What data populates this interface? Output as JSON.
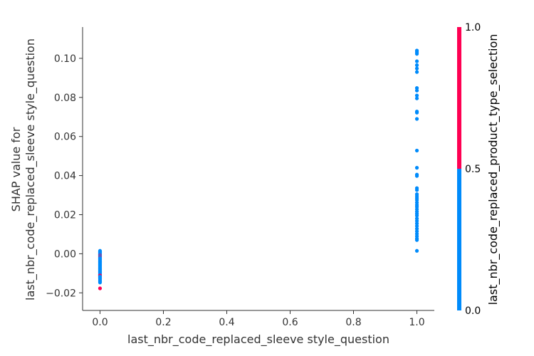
{
  "chart_data": {
    "type": "scatter",
    "xlabel": "last_nbr_code_replaced_sleeve style_question",
    "ylabel_lines": [
      "SHAP value for",
      "last_nbr_code_replaced_sleeve style_question"
    ],
    "xlim": [
      -0.055,
      1.055
    ],
    "ylim": [
      -0.029,
      0.116
    ],
    "x_ticks": [
      {
        "value": 0.0,
        "label": "0.0"
      },
      {
        "value": 0.2,
        "label": "0.2"
      },
      {
        "value": 0.4,
        "label": "0.4"
      },
      {
        "value": 0.6,
        "label": "0.6"
      },
      {
        "value": 0.8,
        "label": "0.8"
      },
      {
        "value": 1.0,
        "label": "1.0"
      }
    ],
    "y_ticks": [
      {
        "value": -0.02,
        "label": "−0.02"
      },
      {
        "value": 0.0,
        "label": "0.00"
      },
      {
        "value": 0.02,
        "label": "0.02"
      },
      {
        "value": 0.04,
        "label": "0.04"
      },
      {
        "value": 0.06,
        "label": "0.06"
      },
      {
        "value": 0.08,
        "label": "0.08"
      },
      {
        "value": 0.1,
        "label": "0.10"
      }
    ],
    "grid": false,
    "colorbar": {
      "title": "last_nbr_code_replaced_product_type_selection",
      "ticks": [
        {
          "value": 0.0,
          "label": "0.0"
        },
        {
          "value": 0.5,
          "label": "0.5"
        },
        {
          "value": 1.0,
          "label": "1.0"
        }
      ],
      "low_color": "#008bfb",
      "high_color": "#ff0052",
      "split": 0.5
    },
    "points": [
      {
        "x": 0,
        "y": 0.0015,
        "c": 0
      },
      {
        "x": 0,
        "y": 0.0012,
        "c": 0
      },
      {
        "x": 0,
        "y": 0.0009,
        "c": 0
      },
      {
        "x": 0,
        "y": 0.0006,
        "c": 0
      },
      {
        "x": 0,
        "y": 0.0003,
        "c": 0
      },
      {
        "x": 0,
        "y": 0.0,
        "c": 0
      },
      {
        "x": 0,
        "y": -0.0003,
        "c": 0
      },
      {
        "x": 0,
        "y": -0.0006,
        "c": 0
      },
      {
        "x": 0,
        "y": -0.0009,
        "c": 1
      },
      {
        "x": 0,
        "y": -0.0012,
        "c": 0
      },
      {
        "x": 0,
        "y": -0.0015,
        "c": 0
      },
      {
        "x": 0,
        "y": -0.0018,
        "c": 1
      },
      {
        "x": 0,
        "y": -0.0021,
        "c": 0
      },
      {
        "x": 0,
        "y": -0.0024,
        "c": 0
      },
      {
        "x": 0,
        "y": -0.0027,
        "c": 0
      },
      {
        "x": 0,
        "y": -0.003,
        "c": 0
      },
      {
        "x": 0,
        "y": -0.0033,
        "c": 0
      },
      {
        "x": 0,
        "y": -0.0036,
        "c": 0
      },
      {
        "x": 0,
        "y": -0.0039,
        "c": 0
      },
      {
        "x": 0,
        "y": -0.0042,
        "c": 0
      },
      {
        "x": 0,
        "y": -0.0045,
        "c": 0
      },
      {
        "x": 0,
        "y": -0.0048,
        "c": 0
      },
      {
        "x": 0,
        "y": -0.0051,
        "c": 0
      },
      {
        "x": 0,
        "y": -0.0054,
        "c": 0
      },
      {
        "x": 0,
        "y": -0.0057,
        "c": 0
      },
      {
        "x": 0,
        "y": -0.006,
        "c": 0
      },
      {
        "x": 0,
        "y": -0.0063,
        "c": 0
      },
      {
        "x": 0,
        "y": -0.0066,
        "c": 0
      },
      {
        "x": 0,
        "y": -0.0069,
        "c": 0
      },
      {
        "x": 0,
        "y": -0.0072,
        "c": 0
      },
      {
        "x": 0,
        "y": -0.0075,
        "c": 0
      },
      {
        "x": 0,
        "y": -0.0078,
        "c": 0
      },
      {
        "x": 0,
        "y": -0.0081,
        "c": 0
      },
      {
        "x": 0,
        "y": -0.0084,
        "c": 0
      },
      {
        "x": 0,
        "y": -0.0087,
        "c": 0
      },
      {
        "x": 0,
        "y": -0.009,
        "c": 0
      },
      {
        "x": 0,
        "y": -0.0093,
        "c": 0
      },
      {
        "x": 0,
        "y": -0.0096,
        "c": 0
      },
      {
        "x": 0,
        "y": -0.0099,
        "c": 0
      },
      {
        "x": 0,
        "y": -0.0105,
        "c": 0
      },
      {
        "x": 0,
        "y": -0.0108,
        "c": 0
      },
      {
        "x": 0,
        "y": -0.0111,
        "c": 1
      },
      {
        "x": 0,
        "y": -0.0114,
        "c": 1
      },
      {
        "x": 0,
        "y": -0.0117,
        "c": 0
      },
      {
        "x": 0,
        "y": -0.012,
        "c": 0
      },
      {
        "x": 0,
        "y": -0.0123,
        "c": 0
      },
      {
        "x": 0,
        "y": -0.0129,
        "c": 0
      },
      {
        "x": 0,
        "y": -0.0135,
        "c": 0
      },
      {
        "x": 0,
        "y": -0.0141,
        "c": 0
      },
      {
        "x": 0,
        "y": -0.0147,
        "c": 0
      },
      {
        "x": 0,
        "y": -0.0177,
        "c": 1
      },
      {
        "x": 1,
        "y": 0.104,
        "c": 0
      },
      {
        "x": 1,
        "y": 0.1032,
        "c": 0
      },
      {
        "x": 1,
        "y": 0.1023,
        "c": 0
      },
      {
        "x": 1,
        "y": 0.0985,
        "c": 0
      },
      {
        "x": 1,
        "y": 0.0965,
        "c": 0
      },
      {
        "x": 1,
        "y": 0.0948,
        "c": 0
      },
      {
        "x": 1,
        "y": 0.093,
        "c": 0
      },
      {
        "x": 1,
        "y": 0.0848,
        "c": 0
      },
      {
        "x": 1,
        "y": 0.0835,
        "c": 0
      },
      {
        "x": 1,
        "y": 0.081,
        "c": 0
      },
      {
        "x": 1,
        "y": 0.0795,
        "c": 0
      },
      {
        "x": 1,
        "y": 0.0728,
        "c": 0
      },
      {
        "x": 1,
        "y": 0.0722,
        "c": 0
      },
      {
        "x": 1,
        "y": 0.069,
        "c": 0
      },
      {
        "x": 1,
        "y": 0.0528,
        "c": 0
      },
      {
        "x": 1,
        "y": 0.044,
        "c": 0
      },
      {
        "x": 1,
        "y": 0.0405,
        "c": 0
      },
      {
        "x": 1,
        "y": 0.0398,
        "c": 0
      },
      {
        "x": 1,
        "y": 0.0336,
        "c": 0
      },
      {
        "x": 1,
        "y": 0.0326,
        "c": 0
      },
      {
        "x": 1,
        "y": 0.0305,
        "c": 0
      },
      {
        "x": 1,
        "y": 0.0295,
        "c": 0
      },
      {
        "x": 1,
        "y": 0.0285,
        "c": 0
      },
      {
        "x": 1,
        "y": 0.0275,
        "c": 0
      },
      {
        "x": 1,
        "y": 0.0262,
        "c": 0
      },
      {
        "x": 1,
        "y": 0.025,
        "c": 0
      },
      {
        "x": 1,
        "y": 0.024,
        "c": 0
      },
      {
        "x": 1,
        "y": 0.0228,
        "c": 0
      },
      {
        "x": 1,
        "y": 0.0216,
        "c": 0
      },
      {
        "x": 1,
        "y": 0.0205,
        "c": 0
      },
      {
        "x": 1,
        "y": 0.0195,
        "c": 0
      },
      {
        "x": 1,
        "y": 0.018,
        "c": 0
      },
      {
        "x": 1,
        "y": 0.0168,
        "c": 0
      },
      {
        "x": 1,
        "y": 0.0155,
        "c": 0
      },
      {
        "x": 1,
        "y": 0.0142,
        "c": 0
      },
      {
        "x": 1,
        "y": 0.0128,
        "c": 0
      },
      {
        "x": 1,
        "y": 0.0115,
        "c": 0
      },
      {
        "x": 1,
        "y": 0.0102,
        "c": 0
      },
      {
        "x": 1,
        "y": 0.009,
        "c": 0
      },
      {
        "x": 1,
        "y": 0.0078,
        "c": 0
      },
      {
        "x": 1,
        "y": 0.007,
        "c": 0
      },
      {
        "x": 1,
        "y": 0.0015,
        "c": 0
      }
    ]
  }
}
